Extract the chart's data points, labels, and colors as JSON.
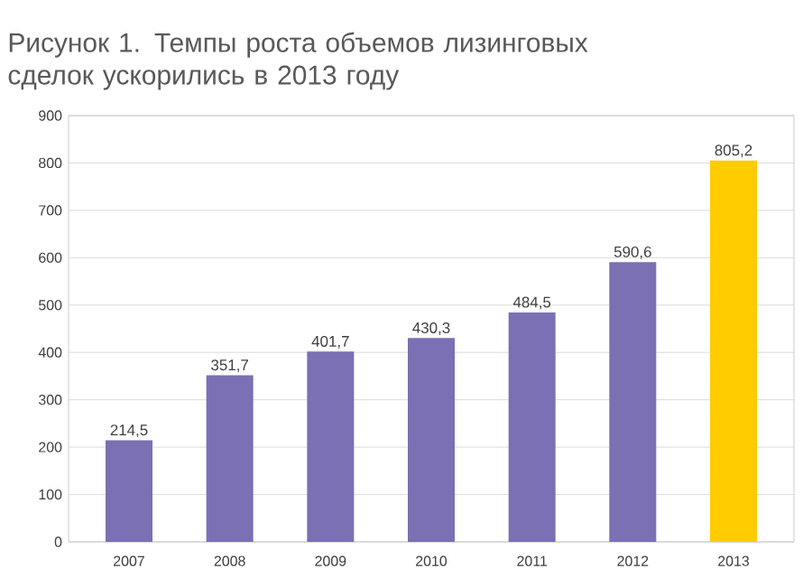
{
  "chart_data": {
    "type": "bar",
    "title": "Рисунок 1. Темпы роста объемов лизинговых сделок ускорились в 2013 году",
    "categories": [
      "2007",
      "2008",
      "2009",
      "2010",
      "2011",
      "2012",
      "2013"
    ],
    "values": [
      214.5,
      351.7,
      401.7,
      430.3,
      484.5,
      590.6,
      805.2
    ],
    "value_labels": [
      "214,5",
      "351,7",
      "401,7",
      "430,3",
      "484,5",
      "590,6",
      "805,2"
    ],
    "colors": [
      "#7b70b4",
      "#7b70b4",
      "#7b70b4",
      "#7b70b4",
      "#7b70b4",
      "#7b70b4",
      "#ffcc00"
    ],
    "ylim": [
      0,
      900
    ],
    "yticks": [
      0,
      100,
      200,
      300,
      400,
      500,
      600,
      700,
      800,
      900
    ],
    "grid": "y"
  }
}
